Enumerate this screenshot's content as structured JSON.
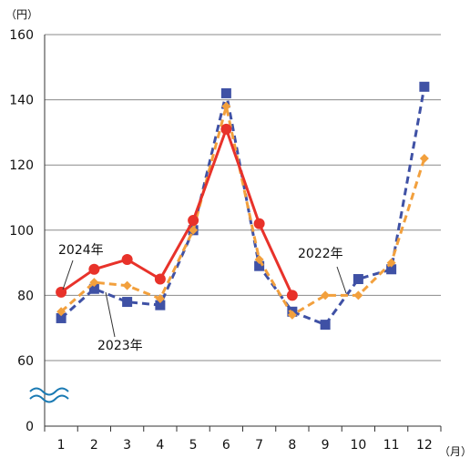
{
  "chart_data": {
    "type": "line",
    "y_unit": "（円）",
    "x_unit": "（月）",
    "categories": [
      "1",
      "2",
      "3",
      "4",
      "5",
      "6",
      "7",
      "8",
      "9",
      "10",
      "11",
      "12"
    ],
    "y_ticks": [
      "0",
      "60",
      "80",
      "100",
      "120",
      "140",
      "160"
    ],
    "ylim": [
      60,
      160
    ],
    "y_axis_break": true,
    "grid": true,
    "series": [
      {
        "name": "2022年",
        "color": "#3F51A5",
        "style": "dashed",
        "marker": "square",
        "values": [
          73,
          82,
          78,
          77,
          100,
          142,
          89,
          75,
          71,
          85,
          88,
          144
        ]
      },
      {
        "name": "2023年",
        "color": "#F2A03D",
        "style": "dashed",
        "marker": "diamond",
        "values": [
          75,
          84,
          83,
          79,
          100,
          138,
          91,
          74,
          80,
          80,
          90,
          122
        ]
      },
      {
        "name": "2024年",
        "color": "#E8322A",
        "style": "solid",
        "marker": "circle",
        "values": [
          81,
          88,
          91,
          85,
          103,
          131,
          102,
          80,
          null,
          null,
          null,
          null
        ]
      }
    ]
  }
}
